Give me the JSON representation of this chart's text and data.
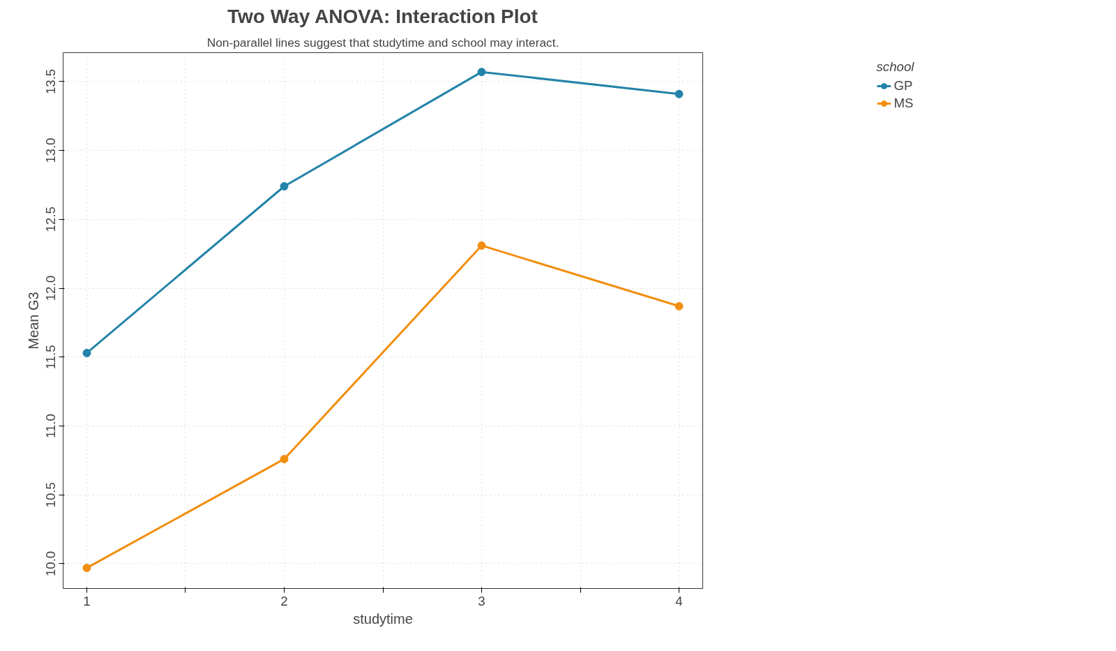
{
  "chart_data": {
    "type": "line",
    "title": "Two Way ANOVA: Interaction Plot",
    "subtitle": "Non-parallel lines suggest that studytime and school may interact.",
    "xlabel": "studytime",
    "ylabel": "Mean G3",
    "legend_title": "school",
    "x": [
      1,
      2,
      3,
      4
    ],
    "series": [
      {
        "name": "GP",
        "color": "#2383a8",
        "values": [
          11.53,
          12.74,
          13.57,
          13.41
        ]
      },
      {
        "name": "MS",
        "color": "#f28e0f",
        "values": [
          9.97,
          10.76,
          12.31,
          11.87
        ]
      }
    ],
    "xlim": [
      0.88,
      4.12
    ],
    "ylim": [
      9.82,
      13.71
    ],
    "xticks": [
      1,
      {
        "value": 1.5,
        "label": null
      },
      2,
      {
        "value": 2.5,
        "label": null
      },
      3,
      {
        "value": 3.5,
        "label": null
      },
      4
    ],
    "yticks": [
      {
        "value": 10.0,
        "label": "10.0"
      },
      10.5,
      {
        "value": 11.0,
        "label": "11.0"
      },
      11.5,
      {
        "value": 12.0,
        "label": "12.0"
      },
      12.5,
      {
        "value": 13.0,
        "label": "13.0"
      },
      13.5
    ],
    "grid": true,
    "legend": "top right",
    "marker": "circle",
    "line_style": "solid"
  }
}
